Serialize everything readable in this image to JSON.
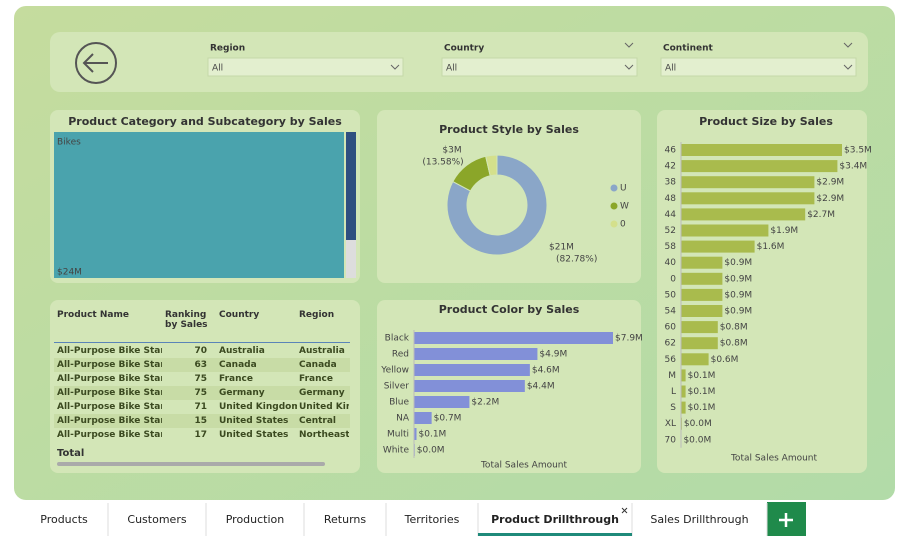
{
  "filters": [
    {
      "label": "Region",
      "value": "All"
    },
    {
      "label": "Country",
      "value": "All"
    },
    {
      "label": "Continent",
      "value": "All"
    }
  ],
  "chart_data": [
    {
      "type": "treemap",
      "title": "Product Category and Subcategory by Sales",
      "categories": [
        "Bikes"
      ],
      "values": [
        24
      ],
      "value_labels": [
        "$24M"
      ],
      "color": "#4aa3ad"
    },
    {
      "type": "donut",
      "title": "Product Style by Sales",
      "categories": [
        "U",
        "W",
        "0"
      ],
      "values": [
        82.78,
        13.58,
        3.64
      ],
      "value_labels": [
        "(82.78%)",
        "(13.58%)",
        null
      ],
      "amount_labels": [
        "$21M",
        "$3M",
        null
      ],
      "colors": [
        "#8aa6c8",
        "#8ba629",
        "#d4e08c"
      ]
    },
    {
      "type": "hbar",
      "title": "Product Color by Sales",
      "x_label": "Total Sales Amount",
      "categories": [
        "Black",
        "Red",
        "Yellow",
        "Silver",
        "Blue",
        "NA",
        "Multi",
        "White"
      ],
      "values": [
        7.9,
        4.9,
        4.6,
        4.4,
        2.2,
        0.7,
        0.1,
        0.03
      ],
      "value_labels": [
        "$7.9M",
        "$4.9M",
        "$4.6M",
        "$4.4M",
        "$2.2M",
        "$0.7M",
        "$0.1M",
        "$0.0M"
      ],
      "color": "#8290d8"
    },
    {
      "type": "hbar",
      "title": "Product Size by Sales",
      "x_label": "Total Sales Amount",
      "categories": [
        "46",
        "42",
        "38",
        "48",
        "44",
        "52",
        "58",
        "40",
        "0",
        "50",
        "54",
        "60",
        "62",
        "56",
        "M",
        "L",
        "S",
        "XL",
        "70"
      ],
      "values": [
        3.5,
        3.4,
        2.9,
        2.9,
        2.7,
        1.9,
        1.6,
        0.9,
        0.9,
        0.9,
        0.9,
        0.8,
        0.8,
        0.6,
        0.1,
        0.1,
        0.1,
        0.02,
        0.01
      ],
      "value_labels": [
        "$3.5M",
        "$3.4M",
        "$2.9M",
        "$2.9M",
        "$2.7M",
        "$1.9M",
        "$1.6M",
        "$0.9M",
        "$0.9M",
        "$0.9M",
        "$0.9M",
        "$0.8M",
        "$0.8M",
        "$0.6M",
        "$0.1M",
        "$0.1M",
        "$0.1M",
        "$0.0M",
        "$0.0M"
      ],
      "color": "#a9bb4d"
    }
  ],
  "table": {
    "columns": [
      "Product Name",
      "Ranking by Sales",
      "Country",
      "Region"
    ],
    "rows": [
      [
        "All-Purpose Bike Stand",
        70,
        "Australia",
        "Australia"
      ],
      [
        "All-Purpose Bike Stand",
        63,
        "Canada",
        "Canada"
      ],
      [
        "All-Purpose Bike Stand",
        75,
        "France",
        "France"
      ],
      [
        "All-Purpose Bike Stand",
        75,
        "Germany",
        "Germany"
      ],
      [
        "All-Purpose Bike Stand",
        71,
        "United Kingdom",
        "United Kingdom"
      ],
      [
        "All-Purpose Bike Stand",
        15,
        "United States",
        "Central"
      ],
      [
        "All-Purpose Bike Stand",
        17,
        "United States",
        "Northeast"
      ]
    ],
    "total": "Total"
  },
  "tabs": [
    "Products",
    "Customers",
    "Production",
    "Returns",
    "Territories",
    "Product Drillthrough",
    "Sales Drillthrough"
  ]
}
